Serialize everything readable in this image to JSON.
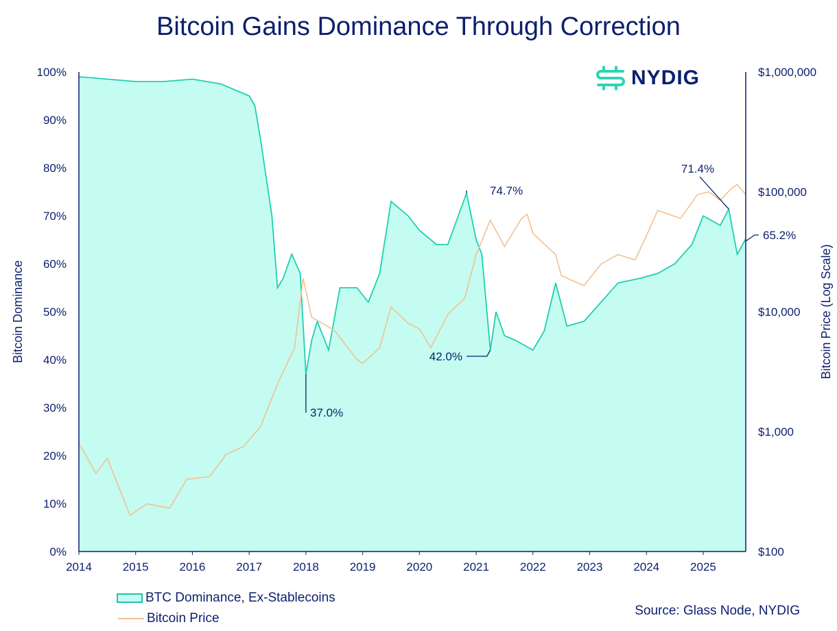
{
  "chart_data": {
    "type": "area",
    "title": "Bitcoin Gains Dominance Through Correction",
    "ylabel": "Bitcoin Dominance",
    "y2label": "Bitcoin Price (Log Scale)",
    "xlim": [
      2014,
      2025.75
    ],
    "ylim": [
      0,
      100
    ],
    "y2lim": [
      100,
      1000000
    ],
    "y2scale": "log",
    "grid": false,
    "legend_placement": "bottom-left",
    "x_ticks": [
      "2014",
      "2015",
      "2016",
      "2017",
      "2018",
      "2019",
      "2020",
      "2021",
      "2022",
      "2023",
      "2024",
      "2025"
    ],
    "y_ticks": [
      "0%",
      "10%",
      "20%",
      "30%",
      "40%",
      "50%",
      "60%",
      "70%",
      "80%",
      "90%",
      "100%"
    ],
    "y2_ticks": [
      "$100",
      "$1,000",
      "$10,000",
      "$100,000",
      "$1,000,000"
    ],
    "colors": {
      "dominance_line": "#1fcfb0",
      "dominance_fill": "#c4fcf1",
      "price": "#f2c093",
      "text": "#0b1f6e"
    },
    "series": [
      {
        "name": "BTC Dominance, Ex-Stablecoins",
        "axis": "left",
        "unit": "%",
        "x": [
          2014.0,
          2014.5,
          2015.0,
          2015.5,
          2016.0,
          2016.5,
          2017.0,
          2017.1,
          2017.2,
          2017.3,
          2017.4,
          2017.5,
          2017.6,
          2017.75,
          2017.9,
          2018.0,
          2018.1,
          2018.2,
          2018.4,
          2018.6,
          2018.9,
          2019.1,
          2019.3,
          2019.5,
          2019.8,
          2020.0,
          2020.3,
          2020.5,
          2020.83,
          2021.0,
          2021.1,
          2021.25,
          2021.35,
          2021.5,
          2021.7,
          2022.0,
          2022.2,
          2022.4,
          2022.6,
          2022.9,
          2023.2,
          2023.5,
          2023.9,
          2024.2,
          2024.5,
          2024.8,
          2025.0,
          2025.3,
          2025.45,
          2025.6,
          2025.75
        ],
        "values": [
          99,
          98.5,
          98,
          98,
          98.5,
          97.5,
          95,
          93,
          86,
          78,
          70,
          55,
          57,
          62,
          58,
          37,
          44,
          48,
          42,
          55,
          55,
          52,
          58,
          73,
          70,
          67,
          64,
          64,
          74.7,
          65,
          62,
          42.0,
          50,
          45,
          44,
          42,
          46,
          56,
          47,
          48,
          52,
          56,
          57,
          58,
          60,
          64,
          70,
          68,
          71.4,
          62,
          65.2
        ]
      },
      {
        "name": "Bitcoin Price",
        "axis": "right",
        "unit": "USD",
        "x": [
          2014.0,
          2014.3,
          2014.5,
          2014.9,
          2015.2,
          2015.6,
          2015.9,
          2016.3,
          2016.6,
          2016.9,
          2017.2,
          2017.5,
          2017.8,
          2017.95,
          2018.1,
          2018.5,
          2018.9,
          2019.0,
          2019.3,
          2019.5,
          2019.8,
          2020.0,
          2020.2,
          2020.5,
          2020.8,
          2021.0,
          2021.25,
          2021.5,
          2021.8,
          2021.9,
          2022.0,
          2022.4,
          2022.5,
          2022.9,
          2023.2,
          2023.5,
          2023.8,
          2024.0,
          2024.2,
          2024.6,
          2024.9,
          2025.1,
          2025.3,
          2025.5,
          2025.6,
          2025.75
        ],
        "values": [
          800,
          450,
          600,
          200,
          250,
          230,
          400,
          420,
          650,
          750,
          1100,
          2500,
          5000,
          19000,
          9000,
          7000,
          4000,
          3700,
          5000,
          11000,
          8000,
          7200,
          5000,
          9500,
          13000,
          30000,
          58000,
          35000,
          60000,
          65000,
          45000,
          30000,
          20000,
          16500,
          25000,
          30000,
          27000,
          43000,
          70000,
          60000,
          95000,
          100000,
          85000,
          107000,
          115000,
          95000
        ]
      }
    ],
    "annotations": [
      "37.0%",
      "74.7%",
      "42.0%",
      "71.4%",
      "65.2%"
    ]
  },
  "logo": "NYDIG",
  "source": "Source: Glass Node, NYDIG"
}
